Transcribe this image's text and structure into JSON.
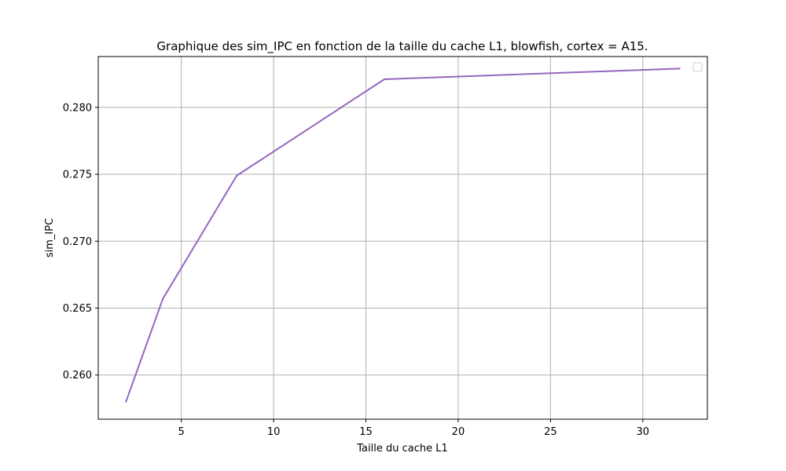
{
  "chart_data": {
    "type": "line",
    "title": "Graphique des sim_IPC en fonction de la taille du cache L1, blowfish, cortex = A15.",
    "xlabel": "Taille du cache L1",
    "ylabel": "sim_IPC",
    "xlim": [
      0.5,
      33.5
    ],
    "ylim": [
      0.2567,
      0.2838
    ],
    "x_ticks": [
      5,
      10,
      15,
      20,
      25,
      30
    ],
    "y_ticks": [
      0.26,
      0.265,
      0.27,
      0.275,
      0.28
    ],
    "x_tick_labels": [
      "5",
      "10",
      "15",
      "20",
      "25",
      "30"
    ],
    "y_tick_labels": [
      "0.260",
      "0.265",
      "0.270",
      "0.275",
      "0.280"
    ],
    "grid": true,
    "legend": "top-right (empty)",
    "series": [
      {
        "color": "#9467bd",
        "points": [
          {
            "x": 2,
            "y": 0.258
          },
          {
            "x": 4,
            "y": 0.2657
          },
          {
            "x": 8,
            "y": 0.2749
          },
          {
            "x": 16,
            "y": 0.2821
          },
          {
            "x": 32,
            "y": 0.2829
          }
        ]
      }
    ]
  }
}
